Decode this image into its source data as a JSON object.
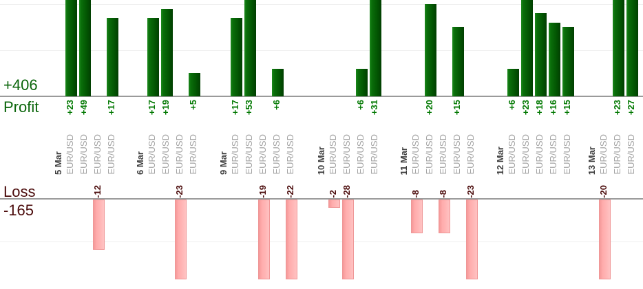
{
  "chart_data": {
    "type": "bar",
    "description": "Daily trade results by symbol: profit bars above upper axis, loss bars below lower axis",
    "labels": {
      "profit_total": "+406",
      "profit_axis": "Profit",
      "loss_axis": "Loss",
      "loss_total": "-165"
    },
    "totals": {
      "profit": 406,
      "loss": -165
    },
    "axis_layout": {
      "grid": "faint horizontal lines at 10-unit steps",
      "value_labels_rotated": true
    },
    "groups": [
      {
        "date": "5 Mar",
        "trades": [
          {
            "symbol": "EUR/USD",
            "value": 23
          },
          {
            "symbol": "EUR/USD",
            "value": 49
          },
          {
            "symbol": "EUR/USD",
            "value": -12
          },
          {
            "symbol": "EUR/USD",
            "value": 17
          }
        ]
      },
      {
        "date": "6 Mar",
        "trades": [
          {
            "symbol": "EUR/USD",
            "value": 17
          },
          {
            "symbol": "EUR/USD",
            "value": 19
          },
          {
            "symbol": "EUR/USD",
            "value": -23
          },
          {
            "symbol": "EUR/USD",
            "value": 5
          }
        ]
      },
      {
        "date": "9 Mar",
        "trades": [
          {
            "symbol": "EUR/USD",
            "value": 17
          },
          {
            "symbol": "EUR/USD",
            "value": 53
          },
          {
            "symbol": "EUR/USD",
            "value": -19
          },
          {
            "symbol": "EUR/USD",
            "value": 6
          },
          {
            "symbol": "EUR/USD",
            "value": -22
          }
        ]
      },
      {
        "date": "10 Mar",
        "trades": [
          {
            "symbol": "EUR/USD",
            "value": -2
          },
          {
            "symbol": "EUR/USD",
            "value": -28
          },
          {
            "symbol": "EUR/USD",
            "value": 6
          },
          {
            "symbol": "EUR/USD",
            "value": 31
          }
        ]
      },
      {
        "date": "11 Mar",
        "trades": [
          {
            "symbol": "EUR/USD",
            "value": -8
          },
          {
            "symbol": "EUR/USD",
            "value": 20
          },
          {
            "symbol": "EUR/USD",
            "value": -8
          },
          {
            "symbol": "EUR/USD",
            "value": 15
          },
          {
            "symbol": "EUR/USD",
            "value": -23
          }
        ]
      },
      {
        "date": "12 Mar",
        "trades": [
          {
            "symbol": "EUR/USD",
            "value": 6
          },
          {
            "symbol": "EUR/USD",
            "value": 23
          },
          {
            "symbol": "EUR/USD",
            "value": 18
          },
          {
            "symbol": "EUR/USD",
            "value": 16
          },
          {
            "symbol": "EUR/USD",
            "value": 15
          }
        ]
      },
      {
        "date": "13 Mar",
        "trades": [
          {
            "symbol": "EUR/USD",
            "value": -20
          },
          {
            "symbol": "EUR/USD",
            "value": 23
          },
          {
            "symbol": "EUR/USD",
            "value": 27
          }
        ]
      }
    ],
    "colors": {
      "profit_text": "#0a650a",
      "profit_value_text": "#047a04",
      "loss_text": "#4b0b0b",
      "bar_green_dark": "#035803",
      "bar_green_light": "#1d8a1d",
      "bar_pink": "#ffacac",
      "bar_pink_border": "#ef9797",
      "symbol_text": "#a3a3a3",
      "date_text": "#3d3d3d",
      "axis_line": "#9a9a9a",
      "grid_line": "#efefef"
    }
  }
}
